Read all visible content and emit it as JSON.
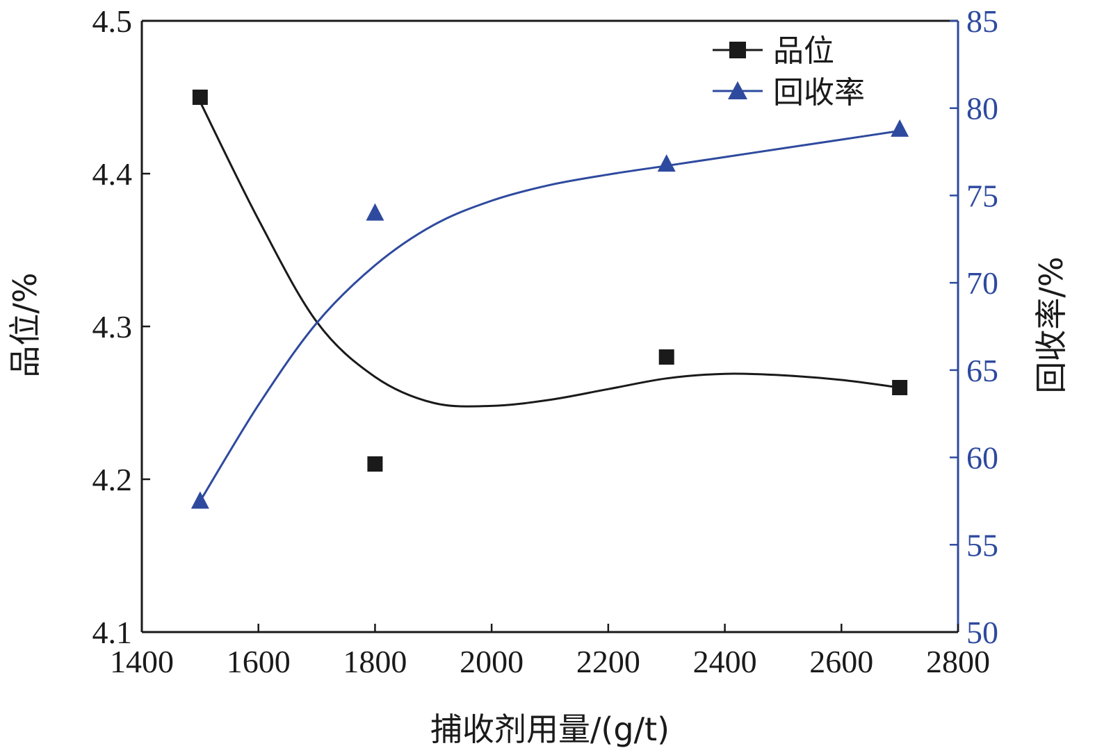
{
  "chart_data": {
    "type": "line",
    "xlabel": "捕收剂用量/(g/t)",
    "ylabel_left": "品位/%",
    "ylabel_right": "回收率/%",
    "xlim": [
      1400,
      2800
    ],
    "xticks": [
      1400,
      1600,
      1800,
      2000,
      2200,
      2400,
      2600,
      2800
    ],
    "ylim_left": [
      4.1,
      4.5
    ],
    "yticks_left": [
      "4.1",
      "4.2",
      "4.3",
      "4.4",
      "4.5"
    ],
    "ylim_right": [
      50,
      85
    ],
    "yticks_right": [
      50,
      55,
      60,
      65,
      70,
      75,
      80,
      85
    ],
    "legend_position": "top-right",
    "colors": {
      "grade": "#1a1a1a",
      "recovery": "#2e4a9e",
      "axis_left": "#1a1a1a",
      "axis_right": "#2e4a9e"
    },
    "series": [
      {
        "name": "品位",
        "axis": "left",
        "marker": "square",
        "x": [
          1500,
          1800,
          2300,
          2700
        ],
        "y": [
          4.45,
          4.21,
          4.28,
          4.26
        ],
        "fit_x": [
          1500,
          1600,
          1700,
          1800,
          1900,
          2000,
          2100,
          2200,
          2300,
          2400,
          2500,
          2600,
          2700
        ],
        "fit_y": [
          4.447,
          4.37,
          4.303,
          4.267,
          4.25,
          4.248,
          4.252,
          4.259,
          4.266,
          4.269,
          4.268,
          4.265,
          4.26
        ]
      },
      {
        "name": "回收率",
        "axis": "right",
        "marker": "triangle",
        "x": [
          1500,
          1800,
          2300,
          2700
        ],
        "y": [
          57.5,
          74.0,
          76.8,
          78.8
        ],
        "fit_x": [
          1500,
          1600,
          1700,
          1800,
          1900,
          2000,
          2100,
          2200,
          2300,
          2400,
          2500,
          2600,
          2700
        ],
        "fit_y": [
          57.5,
          63.0,
          67.7,
          71.0,
          73.3,
          74.7,
          75.6,
          76.2,
          76.7,
          77.2,
          77.7,
          78.2,
          78.7
        ]
      }
    ]
  }
}
